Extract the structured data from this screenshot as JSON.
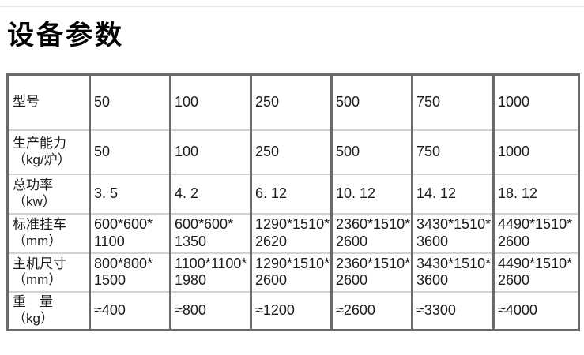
{
  "page": {
    "title": "设备参数"
  },
  "colors": {
    "border_dark": "#6a6a6a",
    "border_light": "#d2d2d2",
    "text": "#1c1c1c",
    "background": "#ffffff"
  },
  "table": {
    "rows": [
      {
        "label": "型号",
        "values": [
          "50",
          "100",
          "250",
          "500",
          "750",
          "1000"
        ]
      },
      {
        "label": "生产能力\n（kg/炉）",
        "values": [
          "50",
          "100",
          "250",
          "500",
          "750",
          "1000"
        ]
      },
      {
        "label": "总功率\n（kw）",
        "values": [
          "3. 5",
          "4. 2",
          "6. 12",
          "10. 12",
          "14. 12",
          "18. 12"
        ]
      },
      {
        "label": "标准挂车\n（mm）",
        "values": [
          "600*600*\n1100",
          "600*600*\n1350",
          "1290*1510*\n2620",
          "2360*1510*\n2600",
          "3430*1510*\n3600",
          "4490*1510*\n2600"
        ]
      },
      {
        "label": "主机尺寸\n（mm）",
        "values": [
          "800*800*\n1500",
          "1100*1100*\n1980",
          "1290*1510*\n2600",
          "2360*1510*\n2600",
          "3430*1510*\n3600",
          "4490*1510*\n2600"
        ]
      },
      {
        "label": "重　量\n（kg）",
        "values": [
          "≈400",
          "≈800",
          "≈1200",
          "≈2600",
          "≈3300",
          "≈4000"
        ]
      }
    ]
  }
}
